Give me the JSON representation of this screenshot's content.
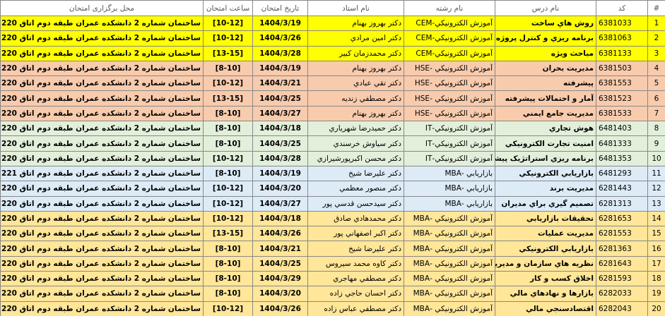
{
  "table": {
    "headers": [
      "#",
      "کد",
      "نام درس",
      "نام رشته",
      "نام استاد",
      "تاریخ امتحان",
      "ساعت امتحان",
      "محل برگزاری امتحان"
    ],
    "rows": [
      [
        "1",
        "6381033",
        "روش هاي ساخت",
        "آموزش الکترونيکي-CEM",
        "دکتر بهروز بهنام",
        "1404/3/19",
        "[10-12]",
        "ساختمان شماره 2 دانشکده عمران طبقه دوم اتاق 220"
      ],
      [
        "2",
        "6381063",
        "برنامه ريزي و کنترل پروژه",
        "آموزش الکترونيکي-CEM",
        "دکتر امين مرادي",
        "1404/3/26",
        "[10-12]",
        "ساختمان شماره 2 دانشکده عمران طبقه دوم اتاق 220"
      ],
      [
        "3",
        "6381133",
        "مباحث ويژه",
        "آموزش الکترونيکي-CEM",
        "دکتر محمدزمان کبير",
        "1404/3/28",
        "[13-15]",
        "ساختمان شماره 2 دانشکده عمران طبقه دوم اتاق 220"
      ],
      [
        "4",
        "6381503",
        "مديريت بحران",
        "آموزش الکترونيکي -HSE",
        "دکتر بهروز بهنام",
        "1404/3/19",
        "[8-10]",
        "ساختمان شماره 2 دانشکده عمران طبقه دوم اتاق 220"
      ],
      [
        "5",
        "6381553",
        "پيشرفته",
        "آموزش الکترونيکي -HSE",
        "دکتر تقي عبادي",
        "1404/3/21",
        "[10-12]",
        "ساختمان شماره 2 دانشکده عمران طبقه دوم اتاق 220"
      ],
      [
        "6",
        "6381523",
        "آمار و احتمالات پيشرفته",
        "آموزش الکترونيکي -HSE",
        "دکتر مصطفي زنديه",
        "1404/3/25",
        "[13-15]",
        "ساختمان شماره 2 دانشکده عمران طبقه دوم اتاق 220"
      ],
      [
        "7",
        "6381533",
        "مديريت جامع ايمني",
        "آموزش الکترونيکي -HSE",
        "دکتر بهروز بهنام",
        "1404/3/27",
        "[8-10]",
        "ساختمان شماره 2 دانشکده عمران طبقه دوم اتاق 220"
      ],
      [
        "8",
        "6481403",
        "هوش تجاري",
        "آموزش الکترونيکي-IT",
        "دکتر حميدرضا شهرياري",
        "1404/3/18",
        "[8-10]",
        "ساختمان شماره 2 دانشکده عمران طبقه دوم اتاق 220"
      ],
      [
        "9",
        "6481333",
        "امنيت تجارت الکترونيکي",
        "آموزش الکترونيکي-IT",
        "دکتر سياوش خرسندي",
        "1404/3/25",
        "[8-10]",
        "ساختمان شماره 2 دانشکده عمران طبقه دوم اتاق 220"
      ],
      [
        "10",
        "6481353",
        "برنامه ريزي استراتژيک پيشرفته",
        "آموزش الکترونيکي-IT",
        "دکتر محسن اکبرپورشيرازي",
        "1404/3/28",
        "[10-12]",
        "ساختمان شماره 2 دانشکده عمران طبقه دوم اتاق 220"
      ],
      [
        "11",
        "6481293",
        "بازاريابي الکترونيکي",
        "بازاريابي -MBA",
        "دکتر عليرضا شيخ",
        "1404/3/19",
        "[8-10]",
        "ساختمان شماره 2 دانشکده عمران طبقه دوم اتاق 221"
      ],
      [
        "12",
        "6281443",
        "مديريت برند",
        "بازاريابي -MBA",
        "دکتر منصور معظمي",
        "1404/3/20",
        "[10-12]",
        "ساختمان شماره 2 دانشکده عمران طبقه دوم اتاق 220"
      ],
      [
        "13",
        "6281313",
        "تصميم گيري براي مديران",
        "بازاريابي -MBA",
        "دکتر سيدحسن قدسي پور",
        "1404/3/27",
        "[10-12]",
        "ساختمان شماره 2 دانشکده عمران طبقه دوم اتاق 220"
      ],
      [
        "14",
        "6281653",
        "تحقيقات بازاريابي",
        "آموزش الکترونيکي -MBA",
        "دکتر محمدهادي صادق",
        "1404/3/18",
        "[10-12]",
        "ساختمان شماره 2 دانشکده عمران طبقه دوم اتاق 220"
      ],
      [
        "15",
        "6281553",
        "مديريت عمليات",
        "آموزش الکترونيکي -MBA",
        "دکتر اکبر اصفهاني پور",
        "1404/3/26",
        "[13-15]",
        "ساختمان شماره 2 دانشکده عمران طبقه دوم اتاق 220"
      ],
      [
        "16",
        "6281363",
        "بازاريابي الکترونيکي",
        "آموزش الکترونيکي -MBA",
        "دکتر عليرضا شيخ",
        "1404/3/21",
        "[8-10]",
        "ساختمان شماره 2 دانشکده عمران طبقه دوم اتاق 220"
      ],
      [
        "17",
        "6281643",
        "نظريه هاي سازمان و مديريت",
        "آموزش الکترونيکي -MBA",
        "دکتر کاوه محمد سيروس",
        "1404/3/25",
        "[8-10]",
        "ساختمان شماره 2 دانشکده عمران طبقه دوم اتاق 220"
      ],
      [
        "18",
        "6281593",
        "اخلاق کسب و کار",
        "آموزش الکترونيکي -MBA",
        "دکتر مصطفي مهاجري",
        "1404/3/29",
        "[8-10]",
        "ساختمان شماره 2 دانشکده عمران طبقه دوم اتاق 220"
      ],
      [
        "19",
        "6282033",
        "بازارها و نهادهاي مالي",
        "آموزش الکترونيکي -MBA",
        "دکتر احسان حاجي زاده",
        "1404/3/20",
        "[8-10]",
        "ساختمان شماره 2 دانشکده عمران طبقه دوم اتاق 220"
      ],
      [
        "20",
        "6282043",
        "اقتصادسنجي مالي",
        "آموزش الکترونيکي -MBA",
        "دکتر مصطفي عباس زاده",
        "1404/3/26",
        "[10-12]",
        "ساختمان شماره 2 دانشکده عمران طبقه دوم اتاق 220"
      ]
    ]
  }
}
